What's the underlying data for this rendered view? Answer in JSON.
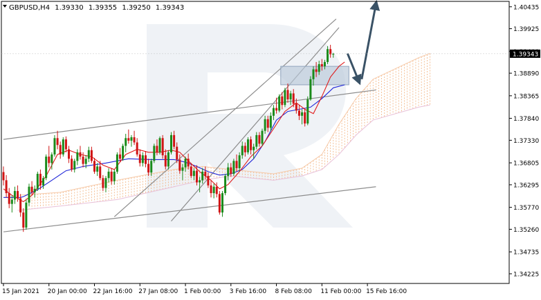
{
  "header": {
    "symbol": "GBPUSD,H4",
    "open": "1.39330",
    "high": "1.39355",
    "low": "1.39250",
    "close": "1.39343"
  },
  "chart_data": {
    "type": "candlestick",
    "ylim": [
      1.34,
      1.4056
    ],
    "y_ticks": [
      "1.40435",
      "1.39925",
      "1.39400",
      "1.38890",
      "1.38365",
      "1.37840",
      "1.37330",
      "1.36805",
      "1.36295",
      "1.35770",
      "1.35260",
      "1.34735",
      "1.34225"
    ],
    "current_price": "1.39343",
    "x_ticks": [
      "15 Jan 2021",
      "20 Jan 00:00",
      "22 Jan 16:00",
      "27 Jan 08:00",
      "1 Feb 00:00",
      "3 Feb 16:00",
      "8 Feb 08:00",
      "11 Feb 00:00",
      "15 Feb 16:00"
    ],
    "x_tick_bars": [
      0,
      16,
      32,
      48,
      64,
      80,
      96,
      112,
      128
    ],
    "last_bar_index": 131,
    "candles": [
      [
        1.3659,
        1.3672,
        1.3628,
        1.364
      ],
      [
        1.364,
        1.3652,
        1.36,
        1.361
      ],
      [
        1.361,
        1.3622,
        1.3575,
        1.3585
      ],
      [
        1.3585,
        1.3605,
        1.3565,
        1.3595
      ],
      [
        1.3595,
        1.3625,
        1.3585,
        1.3615
      ],
      [
        1.3615,
        1.3628,
        1.359,
        1.3598
      ],
      [
        1.3598,
        1.3608,
        1.3555,
        1.3565
      ],
      [
        1.3565,
        1.3575,
        1.352,
        1.353
      ],
      [
        1.353,
        1.3595,
        1.3525,
        1.3588
      ],
      [
        1.3588,
        1.3632,
        1.358,
        1.3625
      ],
      [
        1.3625,
        1.3638,
        1.3605,
        1.3612
      ],
      [
        1.3612,
        1.3628,
        1.36,
        1.362
      ],
      [
        1.362,
        1.366,
        1.3615,
        1.3655
      ],
      [
        1.3655,
        1.3665,
        1.3618,
        1.3628
      ],
      [
        1.3628,
        1.365,
        1.362,
        1.3645
      ],
      [
        1.3645,
        1.37,
        1.364,
        1.3695
      ],
      [
        1.3695,
        1.372,
        1.367,
        1.368
      ],
      [
        1.368,
        1.3705,
        1.3665,
        1.37
      ],
      [
        1.37,
        1.3745,
        1.3695,
        1.3738
      ],
      [
        1.3738,
        1.3755,
        1.3712,
        1.3722
      ],
      [
        1.3722,
        1.373,
        1.369,
        1.37
      ],
      [
        1.37,
        1.374,
        1.3695,
        1.3735
      ],
      [
        1.3735,
        1.3742,
        1.3705,
        1.3712
      ],
      [
        1.3712,
        1.372,
        1.368,
        1.369
      ],
      [
        1.369,
        1.3698,
        1.366,
        1.3665
      ],
      [
        1.3665,
        1.369,
        1.3658,
        1.3685
      ],
      [
        1.3685,
        1.3712,
        1.3675,
        1.3705
      ],
      [
        1.3705,
        1.372,
        1.3688,
        1.3695
      ],
      [
        1.3695,
        1.3705,
        1.367,
        1.3678
      ],
      [
        1.3678,
        1.3698,
        1.3668,
        1.369
      ],
      [
        1.369,
        1.3718,
        1.3682,
        1.371
      ],
      [
        1.371,
        1.3718,
        1.368,
        1.3685
      ],
      [
        1.3685,
        1.3692,
        1.3655,
        1.366
      ],
      [
        1.366,
        1.368,
        1.365,
        1.3672
      ],
      [
        1.3672,
        1.3685,
        1.364,
        1.3645
      ],
      [
        1.3645,
        1.3652,
        1.3615,
        1.3622
      ],
      [
        1.3622,
        1.365,
        1.3612,
        1.3645
      ],
      [
        1.3645,
        1.3668,
        1.3635,
        1.366
      ],
      [
        1.366,
        1.3668,
        1.363,
        1.3638
      ],
      [
        1.3638,
        1.3665,
        1.363,
        1.366
      ],
      [
        1.366,
        1.3705,
        1.3655,
        1.37
      ],
      [
        1.37,
        1.3715,
        1.3682,
        1.369
      ],
      [
        1.369,
        1.3725,
        1.3685,
        1.372
      ],
      [
        1.372,
        1.3748,
        1.3705,
        1.3738
      ],
      [
        1.3738,
        1.3758,
        1.3725,
        1.3732
      ],
      [
        1.3732,
        1.3745,
        1.3718,
        1.374
      ],
      [
        1.374,
        1.3755,
        1.3722,
        1.3728
      ],
      [
        1.3728,
        1.3738,
        1.3695,
        1.37
      ],
      [
        1.37,
        1.3712,
        1.3672,
        1.368
      ],
      [
        1.368,
        1.3705,
        1.3672,
        1.3698
      ],
      [
        1.3698,
        1.3708,
        1.367,
        1.3678
      ],
      [
        1.3678,
        1.369,
        1.365,
        1.3658
      ],
      [
        1.3658,
        1.369,
        1.365,
        1.3685
      ],
      [
        1.3685,
        1.3725,
        1.368,
        1.372
      ],
      [
        1.372,
        1.3735,
        1.3698,
        1.3705
      ],
      [
        1.3705,
        1.3742,
        1.37,
        1.3738
      ],
      [
        1.3738,
        1.3745,
        1.369,
        1.3698
      ],
      [
        1.3698,
        1.3712,
        1.3665,
        1.3672
      ],
      [
        1.3672,
        1.371,
        1.3665,
        1.3705
      ],
      [
        1.3705,
        1.3752,
        1.37,
        1.3745
      ],
      [
        1.3745,
        1.3755,
        1.3712,
        1.3718
      ],
      [
        1.3718,
        1.3728,
        1.368,
        1.3688
      ],
      [
        1.3688,
        1.37,
        1.3655,
        1.3662
      ],
      [
        1.3662,
        1.3678,
        1.364,
        1.367
      ],
      [
        1.367,
        1.3695,
        1.366,
        1.369
      ],
      [
        1.369,
        1.3702,
        1.3665,
        1.3672
      ],
      [
        1.3672,
        1.368,
        1.3645,
        1.365
      ],
      [
        1.365,
        1.3668,
        1.364,
        1.3662
      ],
      [
        1.3662,
        1.3675,
        1.3628,
        1.3635
      ],
      [
        1.3635,
        1.3648,
        1.3612,
        1.364
      ],
      [
        1.364,
        1.3668,
        1.3632,
        1.366
      ],
      [
        1.366,
        1.3672,
        1.3642,
        1.365
      ],
      [
        1.365,
        1.3658,
        1.3622,
        1.3628
      ],
      [
        1.3628,
        1.364,
        1.36,
        1.361
      ],
      [
        1.361,
        1.3632,
        1.3598,
        1.3625
      ],
      [
        1.3625,
        1.3635,
        1.36,
        1.3608
      ],
      [
        1.3608,
        1.3615,
        1.356,
        1.3565
      ],
      [
        1.3565,
        1.3615,
        1.3555,
        1.361
      ],
      [
        1.361,
        1.3655,
        1.3605,
        1.365
      ],
      [
        1.365,
        1.368,
        1.364,
        1.367
      ],
      [
        1.367,
        1.368,
        1.3648,
        1.3655
      ],
      [
        1.3655,
        1.369,
        1.365,
        1.3685
      ],
      [
        1.3685,
        1.37,
        1.366,
        1.3668
      ],
      [
        1.3668,
        1.3705,
        1.366,
        1.3698
      ],
      [
        1.3698,
        1.373,
        1.369,
        1.372
      ],
      [
        1.372,
        1.3728,
        1.3695,
        1.3705
      ],
      [
        1.3705,
        1.374,
        1.37,
        1.3735
      ],
      [
        1.3735,
        1.3742,
        1.37,
        1.371
      ],
      [
        1.371,
        1.3725,
        1.369,
        1.3718
      ],
      [
        1.3718,
        1.3752,
        1.3712,
        1.3745
      ],
      [
        1.3745,
        1.3752,
        1.3718,
        1.3725
      ],
      [
        1.3725,
        1.376,
        1.372,
        1.3755
      ],
      [
        1.3755,
        1.379,
        1.3748,
        1.3782
      ],
      [
        1.3782,
        1.379,
        1.3752,
        1.3762
      ],
      [
        1.3762,
        1.3798,
        1.3755,
        1.379
      ],
      [
        1.379,
        1.3815,
        1.378,
        1.3808
      ],
      [
        1.3808,
        1.3832,
        1.3795,
        1.3802
      ],
      [
        1.3802,
        1.384,
        1.3798,
        1.3835
      ],
      [
        1.3835,
        1.3845,
        1.3805,
        1.3815
      ],
      [
        1.3815,
        1.3855,
        1.381,
        1.385
      ],
      [
        1.385,
        1.3865,
        1.382,
        1.3828
      ],
      [
        1.3828,
        1.3848,
        1.3815,
        1.3842
      ],
      [
        1.3842,
        1.3852,
        1.381,
        1.3818
      ],
      [
        1.3818,
        1.383,
        1.3795,
        1.3802
      ],
      [
        1.3802,
        1.3815,
        1.378,
        1.379
      ],
      [
        1.379,
        1.3805,
        1.377,
        1.3798
      ],
      [
        1.3798,
        1.3808,
        1.3765,
        1.3772
      ],
      [
        1.3772,
        1.3835,
        1.3768,
        1.3828
      ],
      [
        1.3828,
        1.3882,
        1.3825,
        1.3875
      ],
      [
        1.3875,
        1.3905,
        1.386,
        1.3898
      ],
      [
        1.3898,
        1.3915,
        1.388,
        1.3892
      ],
      [
        1.3892,
        1.3918,
        1.3885,
        1.391
      ],
      [
        1.391,
        1.3922,
        1.3895,
        1.3905
      ],
      [
        1.3905,
        1.392,
        1.3898,
        1.3915
      ],
      [
        1.3915,
        1.3952,
        1.391,
        1.3945
      ],
      [
        1.3945,
        1.3955,
        1.3925,
        1.3933
      ],
      [
        1.3933,
        1.3936,
        1.3925,
        1.3934
      ]
    ],
    "candle_start_index": 0,
    "compressed_step": 1,
    "tenkan": [
      [
        0,
        1.362
      ],
      [
        3,
        1.3605
      ],
      [
        7,
        1.359
      ],
      [
        10,
        1.3605
      ],
      [
        15,
        1.365
      ],
      [
        19,
        1.37
      ],
      [
        23,
        1.371
      ],
      [
        27,
        1.37
      ],
      [
        31,
        1.3695
      ],
      [
        35,
        1.3675
      ],
      [
        39,
        1.3665
      ],
      [
        43,
        1.37
      ],
      [
        47,
        1.3712
      ],
      [
        51,
        1.3705
      ],
      [
        55,
        1.3705
      ],
      [
        59,
        1.371
      ],
      [
        62,
        1.3705
      ],
      [
        65,
        1.3685
      ],
      [
        69,
        1.366
      ],
      [
        73,
        1.364
      ],
      [
        76,
        1.362
      ],
      [
        79,
        1.363
      ],
      [
        83,
        1.366
      ],
      [
        87,
        1.3695
      ],
      [
        91,
        1.372
      ],
      [
        95,
        1.376
      ],
      [
        99,
        1.38
      ],
      [
        103,
        1.382
      ],
      [
        106,
        1.3805
      ],
      [
        109,
        1.3795
      ],
      [
        112,
        1.3835
      ],
      [
        115,
        1.388
      ],
      [
        118,
        1.3905
      ],
      [
        120,
        1.3915
      ]
    ],
    "kijun": [
      [
        0,
        1.36
      ],
      [
        6,
        1.36
      ],
      [
        7,
        1.3602
      ],
      [
        12,
        1.3618
      ],
      [
        17,
        1.364
      ],
      [
        22,
        1.3662
      ],
      [
        28,
        1.3672
      ],
      [
        36,
        1.368
      ],
      [
        44,
        1.369
      ],
      [
        52,
        1.3688
      ],
      [
        60,
        1.3688
      ],
      [
        64,
        1.3682
      ],
      [
        68,
        1.3672
      ],
      [
        72,
        1.366
      ],
      [
        76,
        1.3652
      ],
      [
        80,
        1.3655
      ],
      [
        84,
        1.3665
      ],
      [
        88,
        1.369
      ],
      [
        92,
        1.373
      ],
      [
        96,
        1.378
      ],
      [
        100,
        1.38
      ],
      [
        104,
        1.3805
      ],
      [
        108,
        1.381
      ],
      [
        112,
        1.383
      ],
      [
        116,
        1.3855
      ],
      [
        120,
        1.3862
      ]
    ],
    "channels": [
      {
        "from": [
          0,
          1.3735
        ],
        "to": [
          131,
          1.385
        ]
      },
      {
        "from": [
          0,
          1.352
        ],
        "to": [
          131,
          1.3625
        ]
      },
      {
        "from": [
          39,
          1.3555
        ],
        "to": [
          117,
          1.4015
        ]
      },
      {
        "from": [
          59,
          1.3545
        ],
        "to": [
          118,
          1.3995
        ]
      }
    ],
    "zone": {
      "from_bar": 98,
      "to_bar": 121,
      "top": 1.3905,
      "bottom": 1.3862
    },
    "arrows": [
      {
        "from": [
          121,
          1.3935
        ],
        "to": [
          125,
          1.387
        ]
      },
      {
        "from": [
          126,
          1.3875
        ],
        "to": [
          131,
          1.405
        ]
      }
    ]
  }
}
